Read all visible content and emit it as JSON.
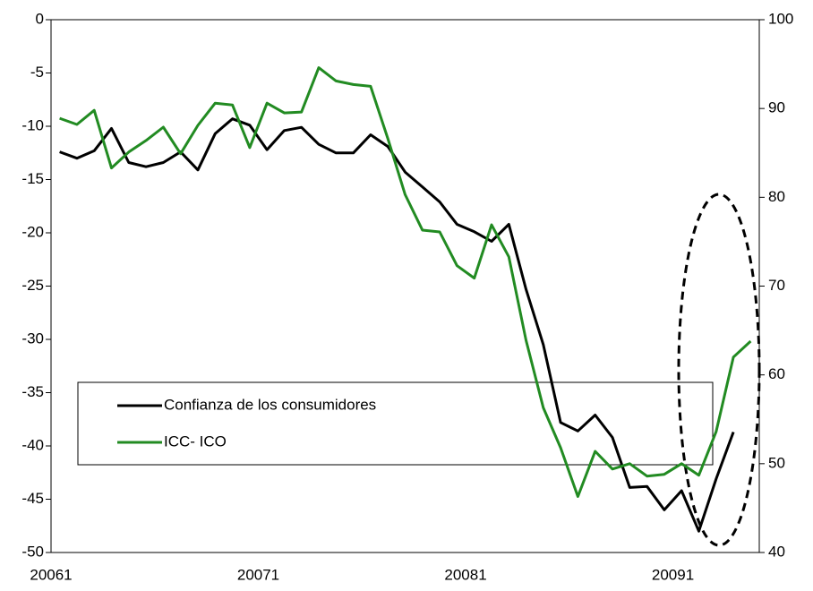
{
  "chart_data": {
    "type": "line",
    "categories": [
      "20061",
      null,
      null,
      null,
      null,
      null,
      null,
      null,
      null,
      null,
      null,
      null,
      "20071",
      null,
      null,
      null,
      null,
      null,
      null,
      null,
      null,
      null,
      null,
      null,
      "20081",
      null,
      null,
      null,
      null,
      null,
      null,
      null,
      null,
      null,
      null,
      null,
      "20091",
      null,
      null,
      null,
      null
    ],
    "series": [
      {
        "name": "Confianza de los consumidores",
        "color": "#000000",
        "axis": "y",
        "values": [
          -12.4,
          -13.0,
          -12.3,
          -10.2,
          -13.4,
          -13.8,
          -13.4,
          -12.4,
          -14.1,
          -10.7,
          -9.3,
          -9.9,
          -12.2,
          -10.4,
          -10.1,
          -11.7,
          -12.5,
          -12.5,
          -10.8,
          -11.9,
          -14.3,
          -15.7,
          -17.1,
          -19.2,
          -19.9,
          -20.8,
          -19.2,
          -25.3,
          -30.5,
          -37.8,
          -38.6,
          -37.1,
          -39.2,
          -43.9,
          -43.8,
          -46.0,
          -44.2,
          -48.0,
          -43.1,
          -38.7,
          null
        ]
      },
      {
        "name": "ICC- ICO",
        "color": "#228b22",
        "axis": "y2",
        "values": [
          88.9,
          88.2,
          89.8,
          83.3,
          85.1,
          86.4,
          87.9,
          84.9,
          88.1,
          90.6,
          90.4,
          85.6,
          90.6,
          89.5,
          89.6,
          94.6,
          93.1,
          92.7,
          92.5,
          86.6,
          80.3,
          76.3,
          76.1,
          72.3,
          70.9,
          76.9,
          73.3,
          63.9,
          56.3,
          51.8,
          46.3,
          51.4,
          49.4,
          50.0,
          48.6,
          48.8,
          50.0,
          48.7,
          53.6,
          62.0,
          63.8
        ]
      }
    ],
    "ylim": [
      -50,
      0
    ],
    "yticks": [
      0,
      -5,
      -10,
      -15,
      -20,
      -25,
      -30,
      -35,
      -40,
      -45,
      -50
    ],
    "y2lim": [
      40,
      100
    ],
    "y2ticks": [
      40,
      50,
      60,
      70,
      80,
      90,
      100
    ],
    "grid": false
  }
}
